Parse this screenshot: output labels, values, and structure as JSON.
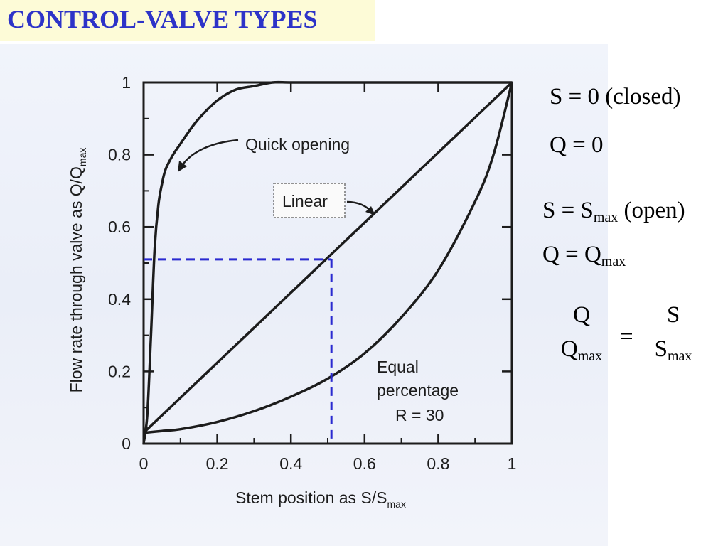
{
  "slide": {
    "title": "CONTROL-VALVE TYPES",
    "colors": {
      "title": "#2d33c8",
      "title_bg": "#fdfbd7",
      "guide_line": "#2a2ad0"
    }
  },
  "equations": {
    "closed_s_text": "S = 0 (closed)",
    "closed_q_text": "Q = 0",
    "open_s_prefix": "S = S",
    "open_s_sub": "max",
    "open_s_suffix": " (open)",
    "open_q_prefix": "Q = Q",
    "open_q_sub": "max",
    "ratio_lhs_num": "Q",
    "ratio_lhs_den": "Q",
    "ratio_lhs_den_sub": "max",
    "ratio_eq": "=",
    "ratio_rhs_num": "S",
    "ratio_rhs_den": "S",
    "ratio_rhs_den_sub": "max"
  },
  "chart_data": {
    "type": "line",
    "xlabel": "Stem position as S/S",
    "xlabel_sub": "max",
    "ylabel": "Flow rate through valve as Q/Q",
    "ylabel_sub": "max",
    "xlim": [
      0,
      1
    ],
    "ylim": [
      0,
      1
    ],
    "xticks": [
      0,
      0.2,
      0.4,
      0.6,
      0.8,
      1
    ],
    "xtick_labels": [
      "0",
      "0.2",
      "0.4",
      "0.6",
      "0.8",
      "1"
    ],
    "yticks": [
      0,
      0.2,
      0.4,
      0.6,
      0.8,
      1
    ],
    "ytick_labels": [
      "0",
      "0.2",
      "0.4",
      "0.6",
      "0.8",
      "1"
    ],
    "grid": false,
    "series": [
      {
        "name": "Quick opening",
        "x": [
          0,
          0.01,
          0.02,
          0.03,
          0.04,
          0.05,
          0.06,
          0.08,
          0.1,
          0.12,
          0.15,
          0.2,
          0.25,
          0.3,
          0.35,
          0.4,
          0.5,
          0.6,
          0.8,
          1.0
        ],
        "y": [
          0,
          0.08,
          0.3,
          0.54,
          0.66,
          0.72,
          0.76,
          0.8,
          0.83,
          0.86,
          0.9,
          0.95,
          0.98,
          0.99,
          1.0,
          1.0,
          1.0,
          1.0,
          1.0,
          1.0
        ]
      },
      {
        "name": "Linear",
        "x": [
          0,
          1
        ],
        "y": [
          0.03,
          1.0
        ]
      },
      {
        "name": "Equal percentage R = 30",
        "x": [
          0,
          0.05,
          0.1,
          0.2,
          0.3,
          0.4,
          0.5,
          0.6,
          0.7,
          0.8,
          0.9,
          0.95,
          1.0
        ],
        "y": [
          0.03,
          0.035,
          0.04,
          0.06,
          0.09,
          0.13,
          0.18,
          0.25,
          0.35,
          0.48,
          0.67,
          0.8,
          1.0
        ]
      }
    ],
    "guide": {
      "x": 0.51,
      "y": 0.51,
      "style": "dashed"
    },
    "annotations": {
      "quick": "Quick opening",
      "linear": "Linear",
      "equal_line1": "Equal",
      "equal_line2": "percentage",
      "equal_line3": "R = 30"
    }
  }
}
